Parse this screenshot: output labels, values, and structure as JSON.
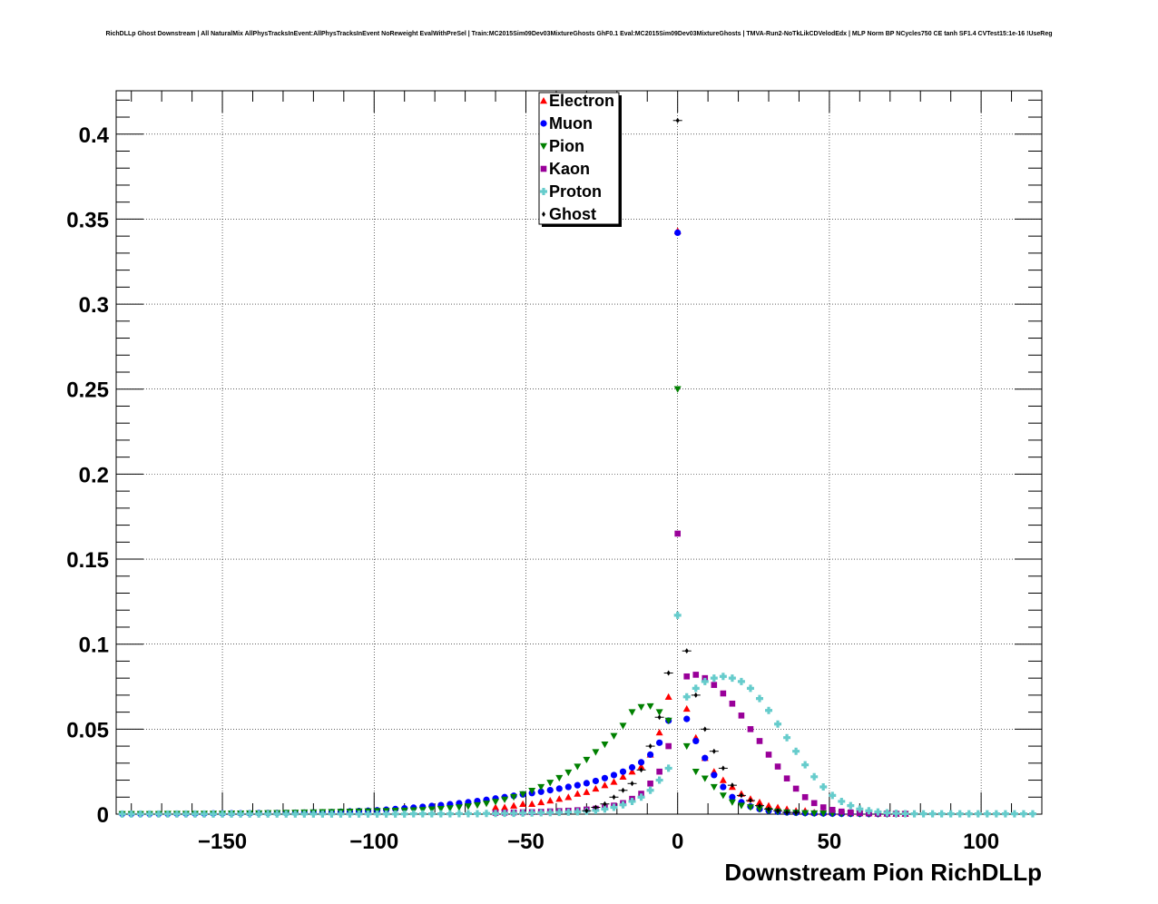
{
  "chart_data": {
    "type": "scatter",
    "title": "RichDLLp Ghost Downstream | All NaturalMix AllPhysTracksInEvent:AllPhysTracksInEvent NoReweight EvalWithPreSel | Train:MC2015Sim09Dev03MixtureGhosts GhF0.1 Eval:MC2015Sim09Dev03MixtureGhosts | TMVA-Run2-NoTkLikCDVelodEdx | MLP Norm BP NCycles750 CE tanh SF1.4 CVTest15:1e-16 !UseReg",
    "xlabel": "Downstream Pion RichDLLp",
    "ylabel": "",
    "xlim": [
      -185,
      120
    ],
    "ylim": [
      0,
      0.4255
    ],
    "x_ticks": [
      -150,
      -100,
      -50,
      0,
      50,
      100
    ],
    "x_tick_labels": [
      "−150",
      "−100",
      "−50",
      "0",
      "50",
      "100"
    ],
    "y_ticks": [
      0,
      0.05,
      0.1,
      0.15,
      0.2,
      0.25,
      0.3,
      0.35,
      0.4
    ],
    "y_tick_labels": [
      "0",
      "0.05",
      "0.1",
      "0.15",
      "0.2",
      "0.25",
      "0.3",
      "0.35",
      "0.4"
    ],
    "grid": true,
    "legend_position": "top-center",
    "series": [
      {
        "name": "Electron",
        "color": "#ff0000",
        "marker": "triangle-up",
        "x": [
          -60,
          -57,
          -54,
          -51,
          -48,
          -45,
          -42,
          -39,
          -36,
          -33,
          -30,
          -27,
          -24,
          -21,
          -18,
          -15,
          -12,
          -9,
          -6,
          -3,
          0,
          3,
          6,
          9,
          12,
          15,
          18,
          21,
          24,
          27,
          30,
          33,
          36,
          39,
          42,
          45,
          48,
          51,
          54,
          57,
          60,
          63,
          66,
          69,
          72,
          75
        ],
        "y": [
          0.004,
          0.004,
          0.005,
          0.006,
          0.006,
          0.007,
          0.008,
          0.009,
          0.01,
          0.012,
          0.013,
          0.015,
          0.017,
          0.019,
          0.022,
          0.025,
          0.028,
          0.035,
          0.048,
          0.069,
          0.343,
          0.062,
          0.045,
          0.033,
          0.025,
          0.02,
          0.016,
          0.012,
          0.009,
          0.007,
          0.005,
          0.004,
          0.003,
          0.002,
          0.002,
          0.001,
          0.001,
          0.001,
          0.001,
          0.0005,
          0.0005,
          0.0005,
          0.0003,
          0.0003,
          0.0002,
          0.0002
        ]
      },
      {
        "name": "Muon",
        "color": "#0000ff",
        "marker": "circle",
        "x": [
          -183,
          -180,
          -177,
          -174,
          -171,
          -168,
          -165,
          -162,
          -159,
          -156,
          -153,
          -150,
          -147,
          -144,
          -141,
          -138,
          -135,
          -132,
          -129,
          -126,
          -123,
          -120,
          -117,
          -114,
          -111,
          -108,
          -105,
          -102,
          -99,
          -96,
          -93,
          -90,
          -87,
          -84,
          -81,
          -78,
          -75,
          -72,
          -69,
          -66,
          -63,
          -60,
          -57,
          -54,
          -51,
          -48,
          -45,
          -42,
          -39,
          -36,
          -33,
          -30,
          -27,
          -24,
          -21,
          -18,
          -15,
          -12,
          -9,
          -6,
          -3,
          0,
          3,
          6,
          9,
          12,
          15,
          18,
          21,
          24,
          27,
          30,
          33,
          36,
          39,
          42,
          45,
          48,
          51,
          54,
          57,
          60,
          63,
          66,
          69,
          72,
          75
        ],
        "y": [
          0.0002,
          0.0002,
          0.0002,
          0.0002,
          0.0002,
          0.0002,
          0.0003,
          0.0003,
          0.0003,
          0.0003,
          0.0004,
          0.0004,
          0.0005,
          0.0005,
          0.0005,
          0.0006,
          0.0006,
          0.0007,
          0.0007,
          0.0008,
          0.0009,
          0.001,
          0.0011,
          0.0012,
          0.0014,
          0.0016,
          0.0018,
          0.002,
          0.0023,
          0.0026,
          0.003,
          0.0034,
          0.0038,
          0.0043,
          0.0048,
          0.0053,
          0.0058,
          0.0064,
          0.007,
          0.0077,
          0.0084,
          0.0092,
          0.01,
          0.0108,
          0.0116,
          0.0124,
          0.0132,
          0.0141,
          0.015,
          0.016,
          0.017,
          0.0182,
          0.0195,
          0.0212,
          0.023,
          0.025,
          0.0275,
          0.0305,
          0.035,
          0.042,
          0.055,
          0.342,
          0.056,
          0.043,
          0.033,
          0.023,
          0.016,
          0.01,
          0.007,
          0.0045,
          0.003,
          0.002,
          0.0014,
          0.001,
          0.0008,
          0.0006,
          0.0005,
          0.0004,
          0.0003,
          0.0002,
          0.0002,
          0.0002,
          0.0001,
          0.0001,
          0.0001,
          0.0001,
          0.0001
        ]
      },
      {
        "name": "Pion",
        "color": "#008000",
        "marker": "triangle-down",
        "x": [
          -183,
          -180,
          -177,
          -174,
          -171,
          -168,
          -165,
          -162,
          -159,
          -156,
          -153,
          -150,
          -147,
          -144,
          -141,
          -138,
          -135,
          -132,
          -129,
          -126,
          -123,
          -120,
          -117,
          -114,
          -111,
          -108,
          -105,
          -102,
          -99,
          -96,
          -93,
          -90,
          -87,
          -84,
          -81,
          -78,
          -75,
          -72,
          -69,
          -66,
          -63,
          -60,
          -57,
          -54,
          -51,
          -48,
          -45,
          -42,
          -39,
          -36,
          -33,
          -30,
          -27,
          -24,
          -21,
          -18,
          -15,
          -12,
          -9,
          -6,
          -3,
          0,
          3,
          6,
          9,
          12,
          15,
          18,
          21,
          24,
          27,
          30,
          33,
          36,
          39,
          42,
          45,
          48,
          51,
          54,
          57,
          60,
          63,
          66,
          69,
          72,
          75
        ],
        "y": [
          0.0001,
          0.0001,
          0.0001,
          0.0001,
          0.0001,
          0.0002,
          0.0002,
          0.0002,
          0.0002,
          0.0003,
          0.0003,
          0.0003,
          0.0004,
          0.0004,
          0.0005,
          0.0005,
          0.0006,
          0.0007,
          0.0008,
          0.0009,
          0.001,
          0.0011,
          0.0012,
          0.0013,
          0.0014,
          0.0015,
          0.0016,
          0.0017,
          0.0018,
          0.0019,
          0.002,
          0.0021,
          0.0023,
          0.0025,
          0.0028,
          0.0031,
          0.0035,
          0.004,
          0.0046,
          0.0053,
          0.0062,
          0.0073,
          0.0086,
          0.0101,
          0.0118,
          0.0138,
          0.016,
          0.0185,
          0.0213,
          0.0245,
          0.028,
          0.032,
          0.0365,
          0.041,
          0.046,
          0.052,
          0.06,
          0.063,
          0.0635,
          0.06,
          0.055,
          0.25,
          0.04,
          0.025,
          0.021,
          0.016,
          0.011,
          0.007,
          0.005,
          0.004,
          0.003,
          0.002,
          0.0015,
          0.001,
          0.0008,
          0.0006,
          0.0005,
          0.0004,
          0.0003,
          0.0002,
          0.0002,
          0.0001,
          0.0001,
          0.0001,
          0.0001,
          0.0001,
          0.0001
        ]
      },
      {
        "name": "Kaon",
        "color": "#990099",
        "marker": "square",
        "x": [
          -60,
          -57,
          -54,
          -51,
          -48,
          -45,
          -42,
          -39,
          -36,
          -33,
          -30,
          -27,
          -24,
          -21,
          -18,
          -15,
          -12,
          -9,
          -6,
          -3,
          0,
          3,
          6,
          9,
          12,
          15,
          18,
          21,
          24,
          27,
          30,
          33,
          36,
          39,
          42,
          45,
          48,
          51,
          54,
          57,
          60,
          63,
          66,
          69,
          72,
          75
        ],
        "y": [
          0.0008,
          0.0009,
          0.001,
          0.0011,
          0.0012,
          0.0014,
          0.0016,
          0.0018,
          0.002,
          0.0023,
          0.0027,
          0.0032,
          0.004,
          0.005,
          0.0065,
          0.009,
          0.012,
          0.018,
          0.025,
          0.04,
          0.165,
          0.081,
          0.082,
          0.08,
          0.076,
          0.071,
          0.065,
          0.058,
          0.05,
          0.043,
          0.035,
          0.028,
          0.021,
          0.015,
          0.01,
          0.0065,
          0.004,
          0.0025,
          0.0015,
          0.001,
          0.0007,
          0.0005,
          0.0004,
          0.0003,
          0.0002,
          0.0002
        ]
      },
      {
        "name": "Proton",
        "color": "#66cccc",
        "marker": "cross",
        "x": [
          -183,
          -180,
          -177,
          -174,
          -171,
          -168,
          -165,
          -162,
          -159,
          -156,
          -153,
          -150,
          -147,
          -144,
          -141,
          -138,
          -135,
          -132,
          -129,
          -126,
          -123,
          -120,
          -117,
          -114,
          -111,
          -108,
          -105,
          -102,
          -99,
          -96,
          -93,
          -90,
          -87,
          -84,
          -81,
          -78,
          -75,
          -72,
          -69,
          -66,
          -63,
          -60,
          -57,
          -54,
          -51,
          -48,
          -45,
          -42,
          -39,
          -36,
          -33,
          -30,
          -27,
          -24,
          -21,
          -18,
          -15,
          -12,
          -9,
          -6,
          -3,
          0,
          3,
          6,
          9,
          12,
          15,
          18,
          21,
          24,
          27,
          30,
          33,
          36,
          39,
          42,
          45,
          48,
          51,
          54,
          57,
          60,
          63,
          66,
          69,
          72,
          75,
          78,
          81,
          84,
          87,
          90,
          93,
          96,
          99,
          102,
          105,
          108,
          111,
          114,
          117
        ],
        "y": [
          0.0001,
          0.0001,
          0.0001,
          0.0001,
          0.0001,
          0.0001,
          0.0001,
          0.0001,
          0.0001,
          0.0001,
          0.0001,
          0.0001,
          0.0001,
          0.0001,
          0.0001,
          0.0001,
          0.0001,
          0.0001,
          0.0001,
          0.0001,
          0.0001,
          0.0001,
          0.0001,
          0.0001,
          0.0001,
          0.0001,
          0.0001,
          0.0001,
          0.0001,
          0.0001,
          0.0001,
          0.0001,
          0.0002,
          0.0002,
          0.0002,
          0.0002,
          0.0002,
          0.0003,
          0.0003,
          0.0003,
          0.0004,
          0.0004,
          0.0005,
          0.0005,
          0.0006,
          0.0007,
          0.0008,
          0.0009,
          0.001,
          0.0012,
          0.0014,
          0.0017,
          0.0022,
          0.003,
          0.004,
          0.0055,
          0.0075,
          0.01,
          0.014,
          0.02,
          0.027,
          0.117,
          0.069,
          0.074,
          0.078,
          0.08,
          0.081,
          0.08,
          0.078,
          0.074,
          0.068,
          0.061,
          0.053,
          0.045,
          0.037,
          0.029,
          0.022,
          0.016,
          0.011,
          0.0075,
          0.005,
          0.003,
          0.002,
          0.0013,
          0.0008,
          0.0005,
          0.0003,
          0.0002,
          0.0002,
          0.0002,
          0.0002,
          0.0002,
          0.0002,
          0.0002,
          0.0002,
          0.0002,
          0.0002,
          0.0002,
          0.0002,
          0.0002,
          0.0002
        ]
      },
      {
        "name": "Ghost",
        "color": "#000000",
        "marker": "diamond",
        "x": [
          -30,
          -27,
          -24,
          -21,
          -18,
          -15,
          -12,
          -9,
          -6,
          -3,
          0,
          3,
          6,
          9,
          12,
          15,
          18,
          21,
          24,
          27,
          30,
          33,
          36,
          39
        ],
        "y": [
          0.002,
          0.004,
          0.006,
          0.01,
          0.014,
          0.018,
          0.026,
          0.04,
          0.057,
          0.083,
          0.408,
          0.096,
          0.07,
          0.05,
          0.037,
          0.027,
          0.017,
          0.011,
          0.008,
          0.005,
          0.003,
          0.002,
          0.001,
          0.001
        ]
      }
    ]
  }
}
